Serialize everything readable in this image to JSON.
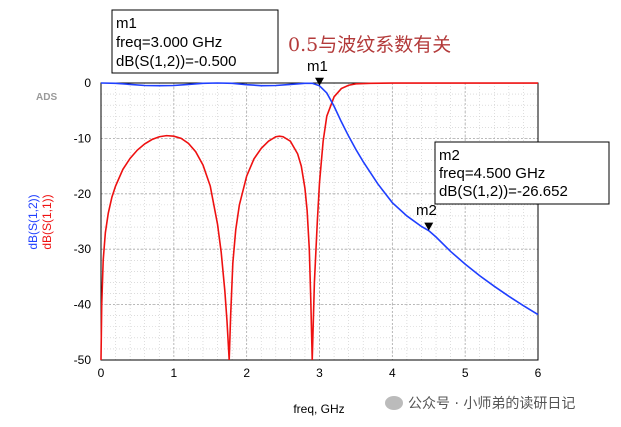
{
  "chart_data": {
    "type": "line",
    "software_tag": "ADS",
    "xlabel": "freq, GHz",
    "ylabel_series": [
      "dB(S(1,2))",
      "dB(S(1,1))"
    ],
    "xlim": [
      0,
      6
    ],
    "ylim": [
      -50,
      0
    ],
    "x_ticks": [
      0,
      1,
      2,
      3,
      4,
      5,
      6
    ],
    "y_ticks": [
      0,
      -10,
      -20,
      -30,
      -40,
      -50
    ],
    "grid": true,
    "colors": {
      "s12": "#1f3fff",
      "s11": "#ee1111"
    },
    "series": [
      {
        "name": "dB(S(1,2))",
        "x": [
          0,
          0.2,
          0.4,
          0.6,
          0.8,
          1.0,
          1.2,
          1.4,
          1.6,
          1.8,
          2.0,
          2.2,
          2.4,
          2.6,
          2.8,
          2.9,
          3.0,
          3.1,
          3.2,
          3.3,
          3.4,
          3.5,
          3.6,
          3.8,
          4.0,
          4.2,
          4.4,
          4.5,
          4.6,
          4.8,
          5.0,
          5.2,
          5.4,
          5.6,
          5.8,
          6.0
        ],
        "y": [
          0,
          -0.05,
          -0.25,
          -0.45,
          -0.48,
          -0.45,
          -0.25,
          -0.05,
          0,
          -0.05,
          -0.3,
          -0.48,
          -0.45,
          -0.25,
          -0.05,
          -0.05,
          -0.5,
          -1.8,
          -4.2,
          -7.0,
          -9.6,
          -12.0,
          -14.2,
          -18.2,
          -21.6,
          -24.0,
          -25.9,
          -26.652,
          -27.8,
          -30.4,
          -32.7,
          -34.8,
          -36.7,
          -38.5,
          -40.2,
          -41.8
        ]
      },
      {
        "name": "dB(S(1,1))",
        "x": [
          0,
          0.01,
          0.03,
          0.06,
          0.1,
          0.15,
          0.2,
          0.3,
          0.4,
          0.5,
          0.6,
          0.7,
          0.8,
          0.9,
          1.0,
          1.1,
          1.2,
          1.3,
          1.4,
          1.5,
          1.6,
          1.65,
          1.7,
          1.73,
          1.76,
          1.78,
          1.81,
          1.85,
          1.9,
          2.0,
          2.1,
          2.2,
          2.3,
          2.4,
          2.45,
          2.5,
          2.6,
          2.7,
          2.75,
          2.8,
          2.83,
          2.86,
          2.88,
          2.9,
          2.93,
          2.97,
          3.0,
          3.05,
          3.1,
          3.2,
          3.3,
          3.4,
          3.5,
          3.7,
          4.0,
          4.5,
          5.0,
          5.5,
          6.0
        ],
        "y": [
          -50,
          -40,
          -32,
          -27,
          -23.5,
          -20.6,
          -18.6,
          -15.6,
          -13.6,
          -12.1,
          -11.0,
          -10.2,
          -9.7,
          -9.5,
          -9.6,
          -10.0,
          -10.9,
          -12.4,
          -14.8,
          -18.6,
          -25.5,
          -30.5,
          -37.5,
          -43,
          -50,
          -42,
          -32.5,
          -26.5,
          -22,
          -16.8,
          -13.7,
          -11.8,
          -10.5,
          -9.7,
          -9.6,
          -9.7,
          -10.5,
          -12.8,
          -15.0,
          -19.0,
          -23.0,
          -30.0,
          -39.0,
          -50,
          -36,
          -25,
          -18.0,
          -10.5,
          -6.0,
          -2.5,
          -1.0,
          -0.4,
          -0.15,
          -0.05,
          -0.02,
          -0.01,
          -0.01,
          -0.01,
          -0.01
        ]
      }
    ],
    "markers": [
      {
        "id": "m1",
        "freq": 3.0,
        "value": -0.5,
        "lines": [
          "m1",
          "freq=3.000 GHz",
          "dB(S(1,2))=-0.500"
        ]
      },
      {
        "id": "m2",
        "freq": 4.5,
        "value": -26.652,
        "lines": [
          "m2",
          "freq=4.500 GHz",
          "dB(S(1,2))=-26.652"
        ]
      }
    ]
  },
  "annotation": "0.5与波纹系数有关",
  "watermark": "公众号 · 小师弟的读研日记"
}
